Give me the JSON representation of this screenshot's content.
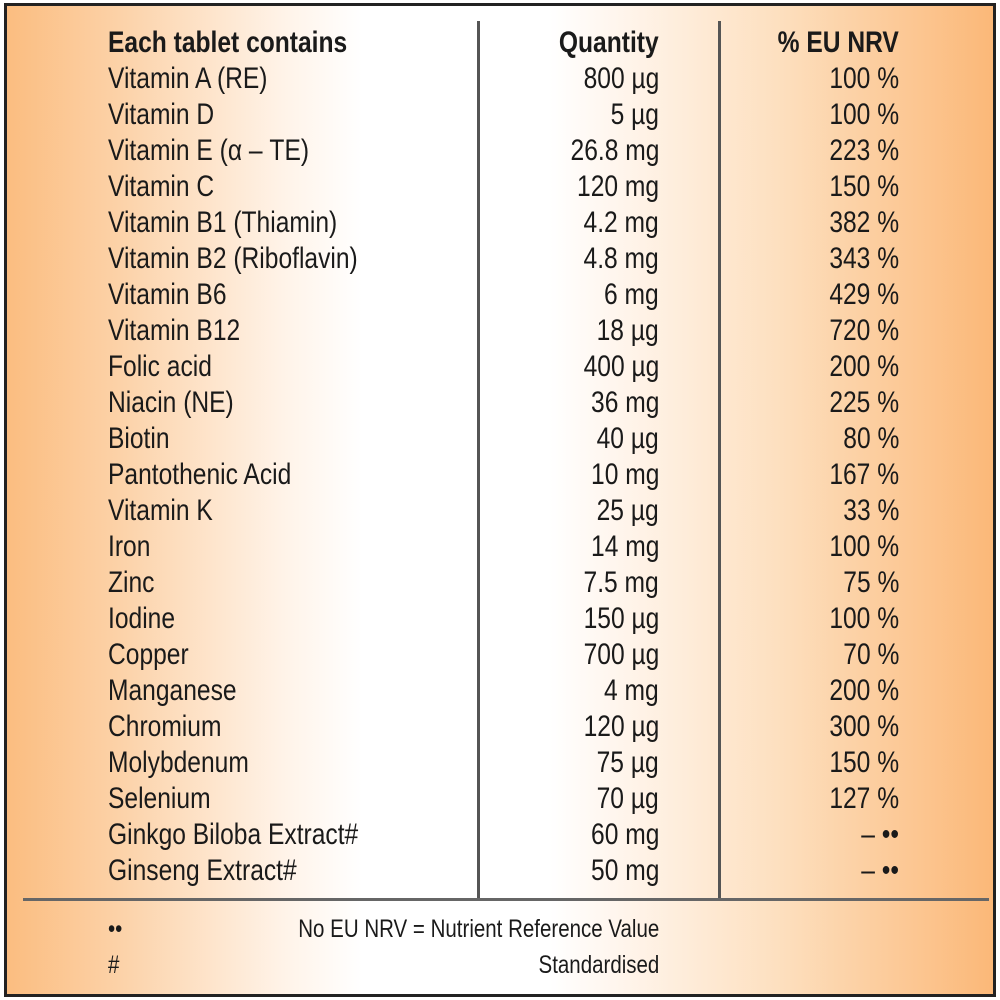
{
  "header": {
    "name": "Each tablet contains",
    "quantity": "Quantity",
    "nrv": "% EU NRV"
  },
  "rows": [
    {
      "name": "Vitamin A (RE)",
      "quantity": "800 µg",
      "nrv": "100 %"
    },
    {
      "name": "Vitamin D",
      "quantity": "5 µg",
      "nrv": "100 %"
    },
    {
      "name": "Vitamin E (α – TE)",
      "quantity": "26.8 mg",
      "nrv": "223 %"
    },
    {
      "name": "Vitamin C",
      "quantity": "120 mg",
      "nrv": "150 %"
    },
    {
      "name": "Vitamin B1 (Thiamin)",
      "quantity": "4.2 mg",
      "nrv": "382 %"
    },
    {
      "name": "Vitamin B2 (Riboflavin)",
      "quantity": "4.8 mg",
      "nrv": "343 %"
    },
    {
      "name": "Vitamin B6",
      "quantity": "6 mg",
      "nrv": "429 %"
    },
    {
      "name": "Vitamin B12",
      "quantity": "18 µg",
      "nrv": "720 %"
    },
    {
      "name": "Folic acid",
      "quantity": "400 µg",
      "nrv": "200 %"
    },
    {
      "name": "Niacin (NE)",
      "quantity": "36 mg",
      "nrv": "225 %"
    },
    {
      "name": "Biotin",
      "quantity": "40 µg",
      "nrv": "80 %"
    },
    {
      "name": "Pantothenic Acid",
      "quantity": "10 mg",
      "nrv": "167 %"
    },
    {
      "name": "Vitamin K",
      "quantity": "25 µg",
      "nrv": "33 %"
    },
    {
      "name": "Iron",
      "quantity": "14 mg",
      "nrv": "100 %"
    },
    {
      "name": "Zinc",
      "quantity": "7.5 mg",
      "nrv": "75 %"
    },
    {
      "name": "Iodine",
      "quantity": "150 µg",
      "nrv": "100 %"
    },
    {
      "name": "Copper",
      "quantity": "700 µg",
      "nrv": "70 %"
    },
    {
      "name": "Manganese",
      "quantity": "4 mg",
      "nrv": "200 %"
    },
    {
      "name": "Chromium",
      "quantity": "120 µg",
      "nrv": "300 %"
    },
    {
      "name": "Molybdenum",
      "quantity": "75 µg",
      "nrv": "150 %"
    },
    {
      "name": "Selenium",
      "quantity": "70 µg",
      "nrv": "127 %"
    },
    {
      "name": "Ginkgo Biloba Extract#",
      "quantity": "60 mg",
      "nrv": "– ••"
    },
    {
      "name": "Ginseng Extract#",
      "quantity": "50 mg",
      "nrv": "– ••"
    }
  ],
  "footnotes": [
    {
      "symbol": "••",
      "text": "No EU NRV = Nutrient Reference Value"
    },
    {
      "symbol": "#",
      "text": "Standardised"
    }
  ]
}
